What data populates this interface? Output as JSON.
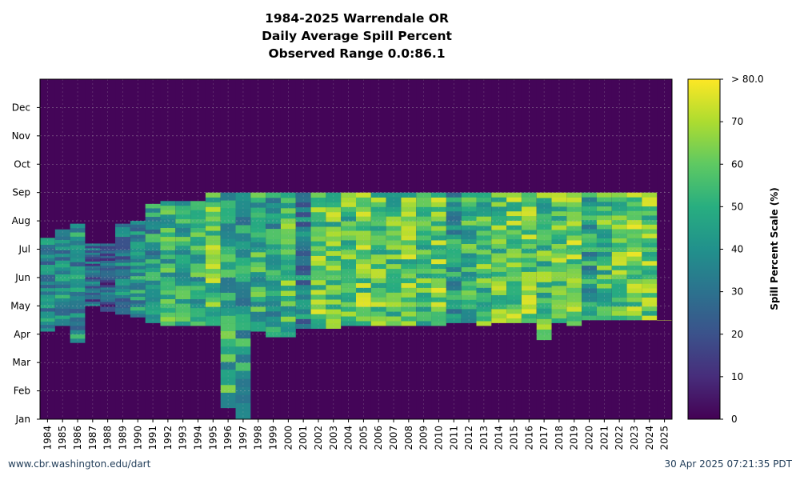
{
  "chart": {
    "title": "1984-2025 Warrendale OR",
    "subtitle": "Daily Average Spill Percent",
    "range_text": "Observed Range 0.0:86.1"
  },
  "footer": {
    "source_url": "www.cbr.washington.edu/dart",
    "timestamp": "30 Apr 2025 07:21:35 PDT"
  },
  "colorbar": {
    "label": "Spill Percent Scale (%)",
    "ticks": [
      "0",
      "10",
      "20",
      "30",
      "40",
      "50",
      "60",
      "70",
      "> 80.0"
    ],
    "tick_values": [
      0,
      10,
      20,
      30,
      40,
      50,
      60,
      70,
      80
    ],
    "colors": [
      "#440154",
      "#472d7b",
      "#3b528b",
      "#2c728e",
      "#21918c",
      "#28ae80",
      "#5ec962",
      "#addc30",
      "#fde725"
    ]
  },
  "chart_data": {
    "type": "heatmap",
    "title": "1984-2025 Warrendale OR",
    "subtitle": "Daily Average Spill Percent",
    "observed_range": [
      0.0,
      86.1
    ],
    "x_categories": [
      "1984",
      "1985",
      "1986",
      "1987",
      "1988",
      "1989",
      "1990",
      "1991",
      "1992",
      "1993",
      "1994",
      "1995",
      "1996",
      "1997",
      "1998",
      "1999",
      "2000",
      "2001",
      "2002",
      "2003",
      "2004",
      "2005",
      "2006",
      "2007",
      "2008",
      "2009",
      "2010",
      "2011",
      "2012",
      "2013",
      "2014",
      "2015",
      "2016",
      "2017",
      "2018",
      "2019",
      "2020",
      "2021",
      "2022",
      "2023",
      "2024",
      "2025"
    ],
    "y_ticks": [
      "Jan",
      "Feb",
      "Mar",
      "Apr",
      "May",
      "Jun",
      "Jul",
      "Aug",
      "Sep",
      "Oct",
      "Nov",
      "Dec"
    ],
    "y_range_months": [
      1,
      13
    ],
    "color_scale_label": "Spill Percent Scale (%)",
    "color_range": [
      0,
      80
    ],
    "grid": true,
    "season_profile_note_free": true,
    "approx_season": {
      "start_month": [
        4.1,
        4.3,
        3.7,
        5.0,
        4.8,
        4.7,
        4.6,
        4.4,
        4.3,
        4.3,
        4.3,
        4.3,
        1.4,
        1.0,
        4.1,
        3.9,
        3.9,
        4.2,
        4.2,
        4.2,
        4.3,
        4.3,
        4.3,
        4.3,
        4.3,
        4.3,
        4.3,
        4.4,
        4.4,
        4.3,
        4.4,
        4.4,
        4.4,
        3.8,
        4.4,
        4.3,
        4.5,
        4.5,
        4.5,
        4.5,
        4.5,
        4.5
      ],
      "end_month": [
        7.4,
        7.7,
        7.9,
        7.2,
        7.2,
        7.9,
        8.0,
        8.6,
        8.7,
        8.7,
        8.7,
        9.0,
        9.0,
        9.0,
        9.0,
        9.0,
        9.0,
        9.0,
        9.0,
        9.0,
        9.0,
        9.0,
        9.0,
        9.0,
        9.0,
        9.0,
        9.0,
        9.0,
        9.0,
        9.0,
        9.0,
        9.0,
        9.0,
        9.0,
        9.0,
        9.0,
        9.0,
        9.0,
        9.0,
        9.0,
        9.0,
        4.5
      ],
      "mean_spill": [
        35,
        38,
        40,
        25,
        22,
        33,
        40,
        42,
        50,
        50,
        48,
        58,
        48,
        45,
        50,
        42,
        55,
        35,
        60,
        58,
        56,
        60,
        58,
        55,
        60,
        58,
        62,
        45,
        52,
        55,
        58,
        62,
        60,
        55,
        60,
        62,
        45,
        55,
        58,
        62,
        60,
        65
      ]
    }
  }
}
